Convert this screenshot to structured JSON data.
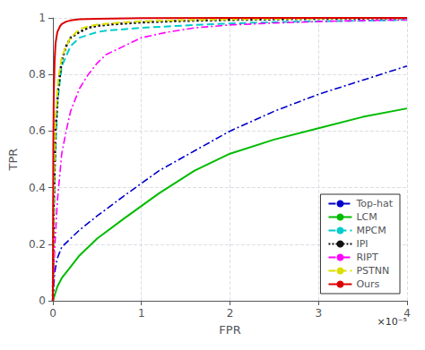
{
  "chart_data": {
    "type": "line",
    "xlabel": "FPR",
    "ylabel": "TPR",
    "xlim": [
      0,
      4e-05
    ],
    "ylim": [
      0,
      1.0
    ],
    "xticks": [
      0,
      {
        "value": 1e-05,
        "label": "1"
      },
      {
        "value": 2e-05,
        "label": "2"
      },
      {
        "value": 3e-05,
        "label": "3"
      },
      {
        "value": 4e-05,
        "label": "4"
      }
    ],
    "yticks": [
      0,
      0.2,
      0.4,
      0.6,
      0.8,
      1
    ],
    "grid": true,
    "legend": "lower right",
    "annotations": [
      "×10⁻⁵"
    ],
    "series": [
      {
        "name": "Top-hat",
        "color": "#0000CC",
        "line_style": "dashdot",
        "x": [
          0,
          2e-07,
          5e-07,
          1e-06,
          2e-06,
          3e-06,
          5e-06,
          8e-06,
          1.2e-05,
          1.6e-05,
          2e-05,
          2.5e-05,
          3e-05,
          3.5e-05,
          4e-05
        ],
        "values": [
          0,
          0.1,
          0.15,
          0.19,
          0.22,
          0.25,
          0.3,
          0.37,
          0.46,
          0.53,
          0.6,
          0.67,
          0.73,
          0.78,
          0.83
        ]
      },
      {
        "name": "LCM",
        "color": "#00BB00",
        "line_style": "solid",
        "x": [
          0,
          5e-07,
          1e-06,
          2e-06,
          3e-06,
          5e-06,
          8e-06,
          1.2e-05,
          1.6e-05,
          2e-05,
          2.5e-05,
          3e-05,
          3.5e-05,
          4e-05
        ],
        "values": [
          0,
          0.05,
          0.08,
          0.12,
          0.16,
          0.22,
          0.29,
          0.38,
          0.46,
          0.52,
          0.57,
          0.61,
          0.65,
          0.68
        ]
      },
      {
        "name": "MPCM",
        "color": "#00CCCC",
        "line_style": "dashed",
        "x": [
          0,
          2e-07,
          5e-07,
          1e-06,
          2e-06,
          3e-06,
          4e-06,
          5e-06,
          6e-06,
          8e-06,
          1e-05,
          1.3e-05,
          1.6e-05,
          2e-05,
          2.5e-05,
          3e-05,
          3.5e-05,
          4e-05
        ],
        "values": [
          0,
          0.45,
          0.7,
          0.83,
          0.9,
          0.93,
          0.94,
          0.95,
          0.955,
          0.96,
          0.965,
          0.97,
          0.975,
          0.98,
          0.985,
          0.988,
          0.99,
          0.993
        ]
      },
      {
        "name": "IPI",
        "color": "#111111",
        "line_style": "dotted",
        "x": [
          0,
          1e-07,
          3e-07,
          6e-07,
          1e-06,
          1.5e-06,
          2e-06,
          3e-06,
          4e-06,
          5e-06,
          7e-06,
          1e-05,
          1.4e-05,
          2e-05,
          2.5e-05,
          3e-05,
          3.5e-05,
          4e-05
        ],
        "values": [
          0,
          0.35,
          0.6,
          0.75,
          0.85,
          0.9,
          0.93,
          0.95,
          0.965,
          0.972,
          0.978,
          0.984,
          0.989,
          0.993,
          0.995,
          0.997,
          0.998,
          0.999
        ]
      },
      {
        "name": "RIPT",
        "color": "#FF00FF",
        "line_style": "dashdot",
        "x": [
          0,
          2e-07,
          5e-07,
          1e-06,
          1.5e-06,
          2e-06,
          3e-06,
          4e-06,
          5e-06,
          6e-06,
          8e-06,
          1e-05,
          1.3e-05,
          1.6e-05,
          2e-05,
          2.5e-05,
          3e-05,
          3.5e-05,
          4e-05
        ],
        "values": [
          0,
          0.18,
          0.35,
          0.52,
          0.6,
          0.67,
          0.75,
          0.8,
          0.84,
          0.87,
          0.9,
          0.93,
          0.95,
          0.965,
          0.975,
          0.982,
          0.987,
          0.991,
          0.993
        ]
      },
      {
        "name": "PSTNN",
        "color": "#DDDD00",
        "line_style": "dashed",
        "x": [
          0,
          1e-07,
          3e-07,
          6e-07,
          1e-06,
          1.5e-06,
          2e-06,
          3e-06,
          4e-06,
          5e-06,
          7e-06,
          1e-05,
          1.4e-05,
          2e-05,
          2.5e-05,
          3e-05,
          3.5e-05,
          4e-05
        ],
        "values": [
          0,
          0.4,
          0.65,
          0.78,
          0.86,
          0.9,
          0.93,
          0.96,
          0.97,
          0.976,
          0.982,
          0.988,
          0.992,
          0.995,
          0.997,
          0.998,
          0.999,
          0.999
        ]
      },
      {
        "name": "Ours",
        "color": "#DD0000",
        "line_style": "solid",
        "x": [
          0,
          5e-08,
          1e-07,
          2e-07,
          3e-07,
          5e-07,
          8e-07,
          1e-06,
          1.5e-06,
          2e-06,
          3e-06,
          5e-06,
          1e-05,
          2e-05,
          4e-05
        ],
        "values": [
          0,
          0.55,
          0.73,
          0.85,
          0.91,
          0.95,
          0.97,
          0.978,
          0.987,
          0.991,
          0.995,
          0.997,
          0.999,
          1.0,
          1.0
        ]
      }
    ]
  }
}
